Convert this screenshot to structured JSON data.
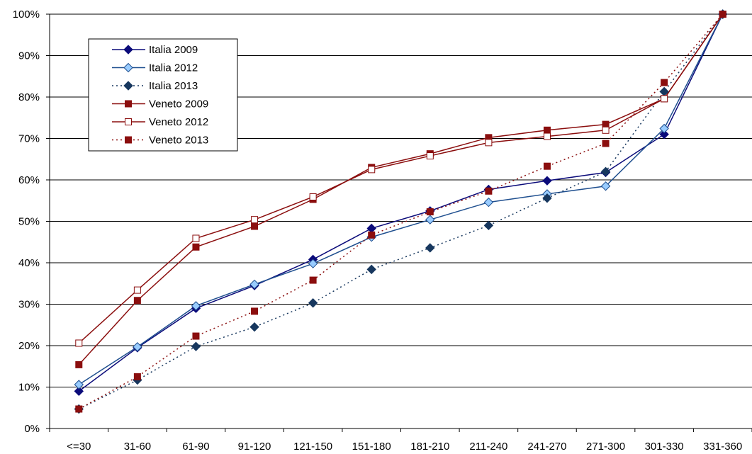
{
  "chart_data": {
    "type": "line",
    "categories": [
      "<=30",
      "31-60",
      "61-90",
      "91-120",
      "121-150",
      "151-180",
      "181-210",
      "211-240",
      "241-270",
      "271-300",
      "301-330",
      "331-360"
    ],
    "y_ticks": [
      "0%",
      "10%",
      "20%",
      "30%",
      "40%",
      "50%",
      "60%",
      "70%",
      "80%",
      "90%",
      "100%"
    ],
    "ylim": [
      0,
      100
    ],
    "grid": true,
    "legend_position": "top-left",
    "series": [
      {
        "name": "Italia 2009",
        "color": "#0b0b7a",
        "line": "solid",
        "marker": "diamond-filled",
        "values": [
          9,
          19.5,
          29,
          34.5,
          40.8,
          48.3,
          52.5,
          57.7,
          59.8,
          61.8,
          71,
          100
        ]
      },
      {
        "name": "Italia 2012",
        "color": "#1f4f8f",
        "markerFill": "#99ccff",
        "line": "solid",
        "marker": "diamond-open",
        "values": [
          10.6,
          19.7,
          29.6,
          34.8,
          39.8,
          46.2,
          50.4,
          54.6,
          56.6,
          58.5,
          72.4,
          100
        ]
      },
      {
        "name": "Italia 2013",
        "color": "#17375e",
        "line": "dotted",
        "marker": "diamond-filled",
        "values": [
          4.7,
          11.7,
          19.8,
          24.5,
          30.3,
          38.4,
          43.6,
          49,
          55.6,
          62,
          81.3,
          100
        ]
      },
      {
        "name": "Veneto 2009",
        "color": "#8b0e0e",
        "line": "solid",
        "marker": "square-filled",
        "values": [
          15.4,
          30.9,
          43.8,
          48.8,
          55.3,
          63,
          66.3,
          70.2,
          72,
          73.4,
          79.6,
          100
        ]
      },
      {
        "name": "Veneto 2012",
        "color": "#8b0e0e",
        "line": "solid",
        "marker": "square-open",
        "values": [
          20.6,
          33.4,
          45.9,
          50.4,
          55.9,
          62.5,
          65.8,
          69,
          70.5,
          72,
          79.6,
          100
        ]
      },
      {
        "name": "Veneto 2013",
        "color": "#8b0e0e",
        "line": "dotted",
        "marker": "square-filled",
        "values": [
          4.7,
          12.5,
          22.3,
          28.3,
          35.8,
          46.7,
          52.3,
          57.3,
          63.3,
          68.8,
          83.5,
          100
        ]
      }
    ]
  }
}
